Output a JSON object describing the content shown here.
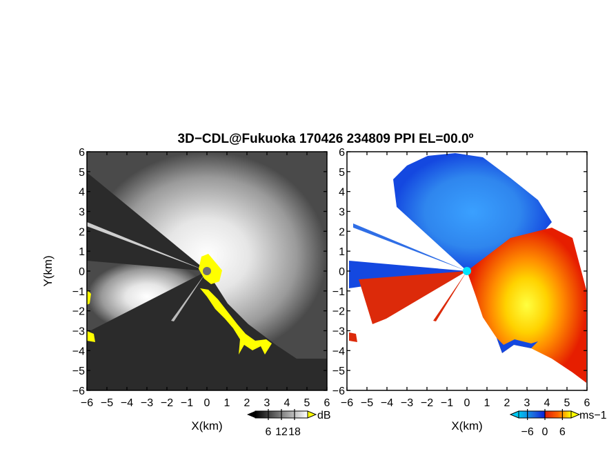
{
  "title": "3D−CDL@Fukuoka 170426 234809 PPI EL=00.0º",
  "chart_data": [
    {
      "type": "heatmap",
      "panel": "left",
      "quantity": "backscatter intensity",
      "xlabel": "X(km)",
      "ylabel": "Y(km)",
      "xlim": [
        -6,
        6
      ],
      "ylim": [
        -6,
        6
      ],
      "x_ticks": [
        -6,
        -5,
        -4,
        -3,
        -2,
        -1,
        0,
        1,
        2,
        3,
        4,
        5,
        6
      ],
      "y_ticks": [
        -6,
        -5,
        -4,
        -3,
        -2,
        -1,
        0,
        1,
        2,
        3,
        4,
        5,
        6
      ],
      "colorbar": {
        "unit": "dB",
        "ticks": [
          6,
          12,
          18
        ],
        "range": [
          0,
          24
        ],
        "colors": [
          "#000000",
          "#ffffff"
        ],
        "extend_color": "#ffff00"
      },
      "radar_position": [
        0,
        0
      ]
    },
    {
      "type": "heatmap",
      "panel": "right",
      "quantity": "Doppler velocity",
      "xlabel": "X(km)",
      "ylabel": "",
      "xlim": [
        -6,
        6
      ],
      "ylim": [
        -6,
        6
      ],
      "x_ticks": [
        -6,
        -5,
        -4,
        -3,
        -2,
        -1,
        0,
        1,
        2,
        3,
        4,
        5,
        6
      ],
      "y_ticks": [
        -6,
        -5,
        -4,
        -3,
        -2,
        -1,
        0,
        1,
        2,
        3,
        4,
        5,
        6
      ],
      "colorbar": {
        "unit": "ms−1",
        "ticks": [
          -6,
          0,
          6
        ],
        "range": [
          -9,
          9
        ],
        "colors": [
          "#00c8f0",
          "#1e64dc",
          "#0a1edc",
          "#dc1e0a",
          "#ff6400",
          "#ffff00"
        ]
      },
      "radar_position": [
        0,
        0
      ]
    }
  ],
  "colors": {
    "left_background": "#2b2b2b",
    "left_echo": "#d8d8d8",
    "saturated": "#ffff00",
    "approach": "#1e78e6",
    "recede": "#ff5a00",
    "radar_marker": "#00e5ff"
  }
}
